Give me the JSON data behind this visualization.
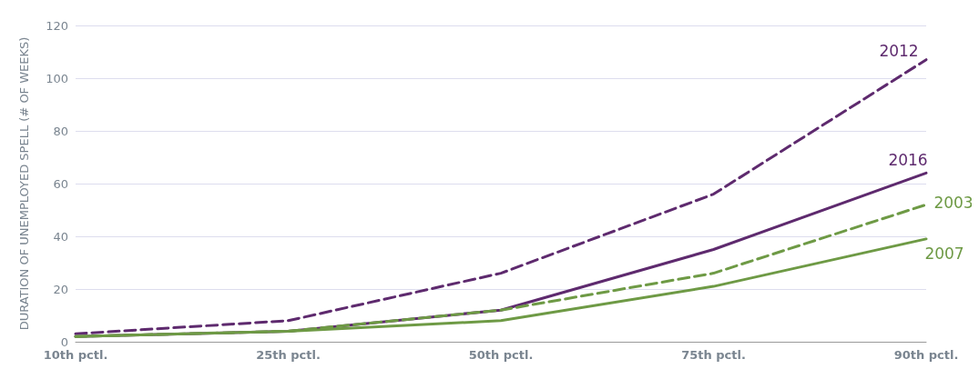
{
  "chart_data": {
    "type": "line",
    "ylabel": "DURATION OF UNEMPLOYED SPELL (# OF WEEKS)",
    "categories": [
      "10th pctl.",
      "25th pctl.",
      "50th pctl.",
      "75th pctl.",
      "90th pctl."
    ],
    "series": [
      {
        "name": "2012",
        "color": "#5e2a6e",
        "line_style": "dashed",
        "values": [
          3,
          8,
          26,
          56,
          107
        ]
      },
      {
        "name": "2016",
        "color": "#5e2a6e",
        "line_style": "solid",
        "values": [
          2,
          4,
          12,
          35,
          64
        ]
      },
      {
        "name": "2003",
        "color": "#6e9a45",
        "line_style": "dashed",
        "values": [
          2,
          4,
          12,
          26,
          52
        ]
      },
      {
        "name": "2007",
        "color": "#6e9a45",
        "line_style": "solid",
        "values": [
          2,
          4,
          8,
          21,
          39
        ]
      }
    ],
    "ylim": [
      0,
      120
    ],
    "yticks": [
      0,
      20,
      40,
      60,
      80,
      100,
      120
    ],
    "grid": "y",
    "legend": false,
    "marker": "none"
  }
}
